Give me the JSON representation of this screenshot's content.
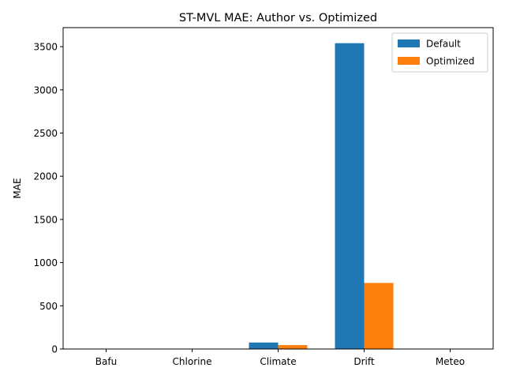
{
  "chart_data": {
    "type": "bar",
    "title": "ST-MVL MAE: Author vs. Optimized",
    "xlabel": "",
    "ylabel": "MAE",
    "categories": [
      "Bafu",
      "Chlorine",
      "Climate",
      "Drift",
      "Meteo"
    ],
    "series": [
      {
        "name": "Default",
        "color": "#1f77b4",
        "values": [
          0.5,
          0.2,
          75,
          3540,
          0.8
        ]
      },
      {
        "name": "Optimized",
        "color": "#ff7f0e",
        "values": [
          0.4,
          0.15,
          45,
          765,
          0.6
        ]
      }
    ],
    "ylim": [
      0,
      3720
    ],
    "yticks": [
      0,
      500,
      1000,
      1500,
      2000,
      2500,
      3000,
      3500
    ],
    "grid": false,
    "legend_position": "top-right"
  }
}
